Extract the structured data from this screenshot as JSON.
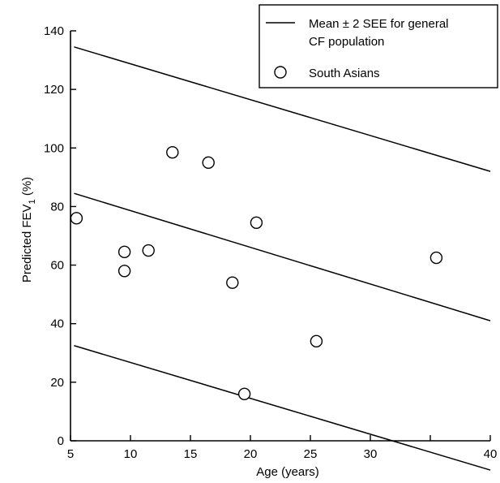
{
  "chart_data": {
    "type": "scatter",
    "xlabel": "Age (years)",
    "ylabel_main": "Predicted FEV",
    "ylabel_sub": "1",
    "ylabel_suffix": " (%)",
    "xlim": [
      5,
      40
    ],
    "ylim": [
      0,
      140
    ],
    "x_ticks": [
      5,
      10,
      15,
      20,
      25,
      30,
      35,
      40
    ],
    "x_tick_labels": [
      "5",
      "10",
      "15",
      "20",
      "25",
      "30",
      "",
      "40"
    ],
    "y_ticks": [
      0,
      20,
      40,
      60,
      80,
      100,
      120,
      140
    ],
    "y_tick_labels": [
      "0",
      "20",
      "40",
      "60",
      "80",
      "100",
      "120",
      "140"
    ],
    "grid": false,
    "legend_position": "top-right",
    "legend": {
      "line_label_line1": "Mean ± 2 SEE for general",
      "line_label_line2": "CF population",
      "points_label": "South Asians"
    },
    "reference_lines": [
      {
        "x": [
          5.3,
          40
        ],
        "y": [
          134.5,
          92
        ]
      },
      {
        "x": [
          5.3,
          40
        ],
        "y": [
          84.5,
          41
        ]
      },
      {
        "x": [
          5.3,
          40
        ],
        "y": [
          32.5,
          -10
        ]
      }
    ],
    "series": [
      {
        "name": "South Asians",
        "points": [
          {
            "x": 5.5,
            "y": 76
          },
          {
            "x": 9.5,
            "y": 64.5
          },
          {
            "x": 9.5,
            "y": 58
          },
          {
            "x": 11.5,
            "y": 65
          },
          {
            "x": 13.5,
            "y": 98.5
          },
          {
            "x": 16.5,
            "y": 95
          },
          {
            "x": 18.5,
            "y": 54
          },
          {
            "x": 19.5,
            "y": 16
          },
          {
            "x": 20.5,
            "y": 74.5
          },
          {
            "x": 25.5,
            "y": 34
          },
          {
            "x": 35.5,
            "y": 62.5
          }
        ]
      }
    ]
  }
}
